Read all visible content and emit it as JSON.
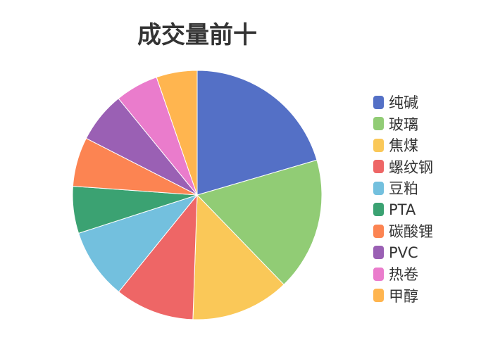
{
  "chart_data": {
    "type": "pie",
    "title": "成交量前十",
    "legend_position": "right",
    "categories": [
      "纯碱",
      "玻璃",
      "焦煤",
      "螺纹钢",
      "豆粕",
      "PTA",
      "碳酸锂",
      "PVC",
      "热卷",
      "甲醇"
    ],
    "values": [
      20.5,
      17.3,
      12.8,
      10.3,
      9.2,
      6.1,
      6.4,
      6.6,
      5.6,
      5.3
    ],
    "colors": [
      "#5470c6",
      "#91cc75",
      "#fac858",
      "#ee6666",
      "#73c0de",
      "#3ba272",
      "#fc8452",
      "#9a60b4",
      "#ea7ccc",
      "#ffb54f"
    ]
  }
}
